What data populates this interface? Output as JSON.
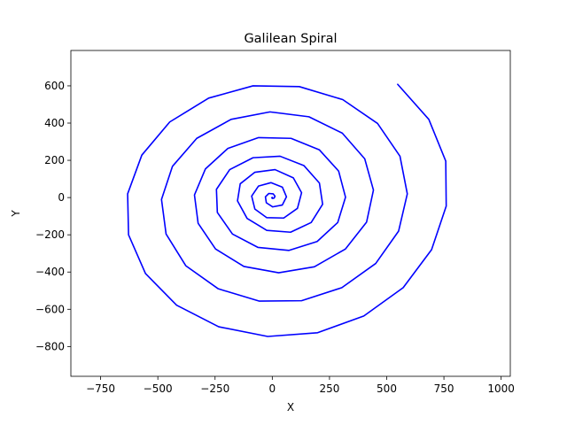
{
  "chart_data": {
    "type": "line",
    "title": "Galilean Spiral",
    "xlabel": "X",
    "ylabel": "Y",
    "xlim": [
      -880,
      1040
    ],
    "ylim": [
      -960,
      790
    ],
    "x_ticks": [
      -750,
      -500,
      -250,
      0,
      250,
      500,
      750,
      1000
    ],
    "y_ticks": [
      -800,
      -600,
      -400,
      -200,
      0,
      200,
      400,
      600
    ],
    "x_tick_labels": [
      "−750",
      "−500",
      "−250",
      "0",
      "250",
      "500",
      "750",
      "1000"
    ],
    "y_tick_labels": [
      "−800",
      "−600",
      "−400",
      "−200",
      "0",
      "200",
      "400",
      "600"
    ],
    "grid": false,
    "legend": "none",
    "series": [
      {
        "formula": "r = 1000 * (t / (8*pi))^2, x = r*cos(t), y = r*sin(t), t in [0, 8*pi]",
        "color": "#0000ff",
        "points": [
          [
            0,
            0
          ],
          [
            0.4,
            0.2
          ],
          [
            0.4,
            0.6
          ],
          [
            -0.6,
            0.8
          ],
          [
            -2,
            -2
          ],
          [
            0.6,
            -4.6
          ],
          [
            8,
            -3
          ],
          [
            12,
            7
          ],
          [
            4,
            20
          ],
          [
            -15,
            22
          ],
          [
            -30,
            4
          ],
          [
            -26,
            -28
          ],
          [
            2,
            -50
          ],
          [
            44,
            -40
          ],
          [
            62,
            4
          ],
          [
            44,
            56
          ],
          [
            -6,
            80
          ],
          [
            -60,
            62
          ],
          [
            -90,
            8
          ],
          [
            -76,
            -62
          ],
          [
            -24,
            -108
          ],
          [
            50,
            -110
          ],
          [
            110,
            -58
          ],
          [
            128,
            26
          ],
          [
            92,
            106
          ],
          [
            12,
            150
          ],
          [
            -76,
            136
          ],
          [
            -140,
            74
          ],
          [
            -152,
            -18
          ],
          [
            -110,
            -112
          ],
          [
            -24,
            -176
          ],
          [
            80,
            -186
          ],
          [
            170,
            -134
          ],
          [
            220,
            -36
          ],
          [
            206,
            78
          ],
          [
            138,
            172
          ],
          [
            34,
            222
          ],
          [
            -84,
            214
          ],
          [
            -186,
            150
          ],
          [
            -244,
            44
          ],
          [
            -240,
            -80
          ],
          [
            -174,
            -196
          ],
          [
            -62,
            -268
          ],
          [
            72,
            -284
          ],
          [
            196,
            -236
          ],
          [
            286,
            -134
          ],
          [
            320,
            2
          ],
          [
            290,
            142
          ],
          [
            206,
            256
          ],
          [
            82,
            318
          ],
          [
            -60,
            322
          ],
          [
            -194,
            264
          ],
          [
            -292,
            154
          ],
          [
            -340,
            14
          ],
          [
            -324,
            -138
          ],
          [
            -248,
            -276
          ],
          [
            -124,
            -370
          ],
          [
            28,
            -404
          ],
          [
            184,
            -372
          ],
          [
            320,
            -276
          ],
          [
            412,
            -132
          ],
          [
            442,
            40
          ],
          [
            404,
            208
          ],
          [
            306,
            346
          ],
          [
            160,
            434
          ],
          [
            -10,
            460
          ],
          [
            -180,
            420
          ],
          [
            -330,
            318
          ],
          [
            -436,
            168
          ],
          [
            -484,
            -10
          ],
          [
            -464,
            -196
          ],
          [
            -378,
            -366
          ],
          [
            -236,
            -490
          ],
          [
            -58,
            -556
          ],
          [
            128,
            -554
          ],
          [
            304,
            -484
          ],
          [
            452,
            -354
          ],
          [
            552,
            -180
          ],
          [
            590,
            20
          ],
          [
            558,
            222
          ],
          [
            460,
            398
          ],
          [
            308,
            526
          ],
          [
            118,
            596
          ],
          [
            -84,
            600
          ],
          [
            -278,
            534
          ],
          [
            -448,
            406
          ],
          [
            -570,
            228
          ],
          [
            -632,
            20
          ],
          [
            -628,
            -200
          ],
          [
            -554,
            -408
          ],
          [
            -418,
            -578
          ],
          [
            -234,
            -694
          ],
          [
            -20,
            -746
          ],
          [
            198,
            -726
          ],
          [
            400,
            -636
          ],
          [
            572,
            -484
          ],
          [
            696,
            -280
          ],
          [
            760,
            -46
          ],
          [
            758,
            196
          ],
          [
            684,
            420
          ],
          [
            548,
            608
          ]
        ]
      }
    ]
  }
}
